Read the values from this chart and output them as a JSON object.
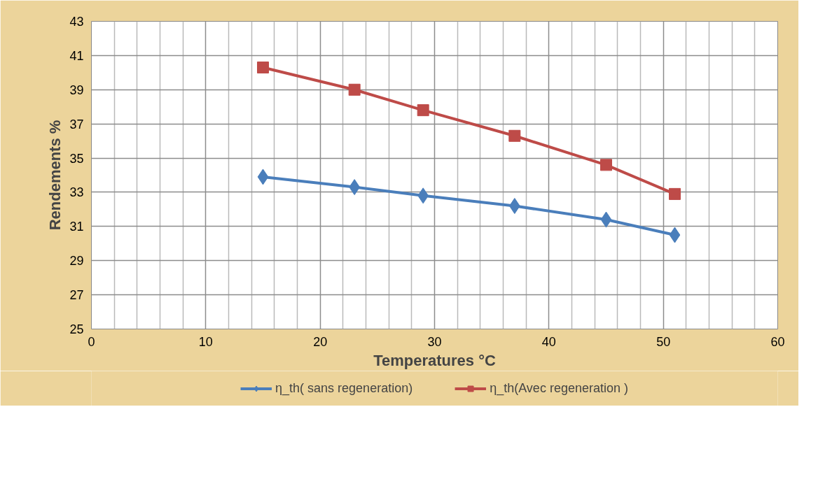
{
  "chart_data": {
    "type": "line",
    "xlabel": "Temperatures °C",
    "ylabel": "Rendements %",
    "x": [
      15,
      23,
      29,
      37,
      45,
      51
    ],
    "series": [
      {
        "name": "η_th( sans regeneration)",
        "color": "#4a7ebb",
        "marker": "diamond",
        "values": [
          33.9,
          33.3,
          32.8,
          32.2,
          31.4,
          30.5
        ]
      },
      {
        "name": "η_th(Avec regeneration )",
        "color": "#be4b48",
        "marker": "square",
        "values": [
          40.3,
          39.0,
          37.8,
          36.3,
          34.6,
          32.9
        ]
      }
    ],
    "xlim": [
      0,
      60
    ],
    "xticks": [
      0,
      10,
      20,
      30,
      40,
      50,
      60
    ],
    "ylim": [
      25,
      43
    ],
    "yticks": [
      25,
      27,
      29,
      31,
      33,
      35,
      37,
      39,
      41,
      43
    ],
    "grid": true,
    "legend": "bottom",
    "line_style": "solid"
  }
}
